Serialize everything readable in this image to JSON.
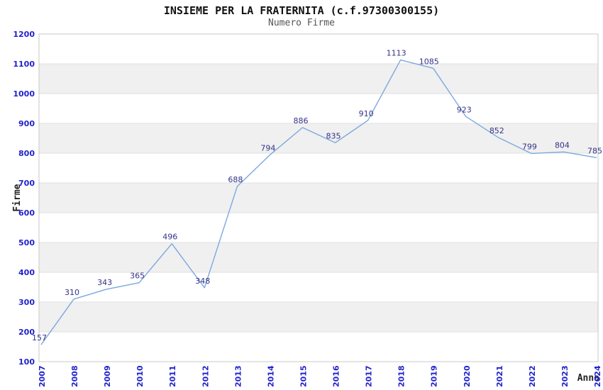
{
  "title": "INSIEME PER LA FRATERNITA (c.f.97300300155)",
  "subtitle": "Numero Firme",
  "chart_data": {
    "type": "line",
    "categories": [
      "2007",
      "2008",
      "2009",
      "2010",
      "2011",
      "2012",
      "2013",
      "2014",
      "2015",
      "2016",
      "2017",
      "2018",
      "2019",
      "2020",
      "2021",
      "2022",
      "2023",
      "2024"
    ],
    "values": [
      157,
      310,
      343,
      365,
      496,
      348,
      688,
      794,
      886,
      835,
      910,
      1113,
      1085,
      923,
      852,
      799,
      804,
      785
    ],
    "title": "INSIEME PER LA FRATERNITA (c.f.97300300155)",
    "subtitle": "Numero Firme",
    "xlabel": "Anno",
    "ylabel": "Firme",
    "ylim": [
      100,
      1200
    ],
    "yticks": [
      100,
      200,
      300,
      400,
      500,
      600,
      700,
      800,
      900,
      1000,
      1100,
      1200
    ],
    "grid": "horizontal gridlines with alternating shaded bands every 100",
    "legend": "none",
    "markers": "none",
    "data_labels_visible": true
  },
  "colors": {
    "line": "#7CA8DD",
    "band": "#F0F0F0",
    "grid": "#E0E0E0",
    "border": "#C9C9C9",
    "tick_label": "#2222CC",
    "data_label": "#333388",
    "title": "#111111",
    "subtitle": "#555555",
    "axis_title": "#222222",
    "background": "#FFFFFF"
  }
}
